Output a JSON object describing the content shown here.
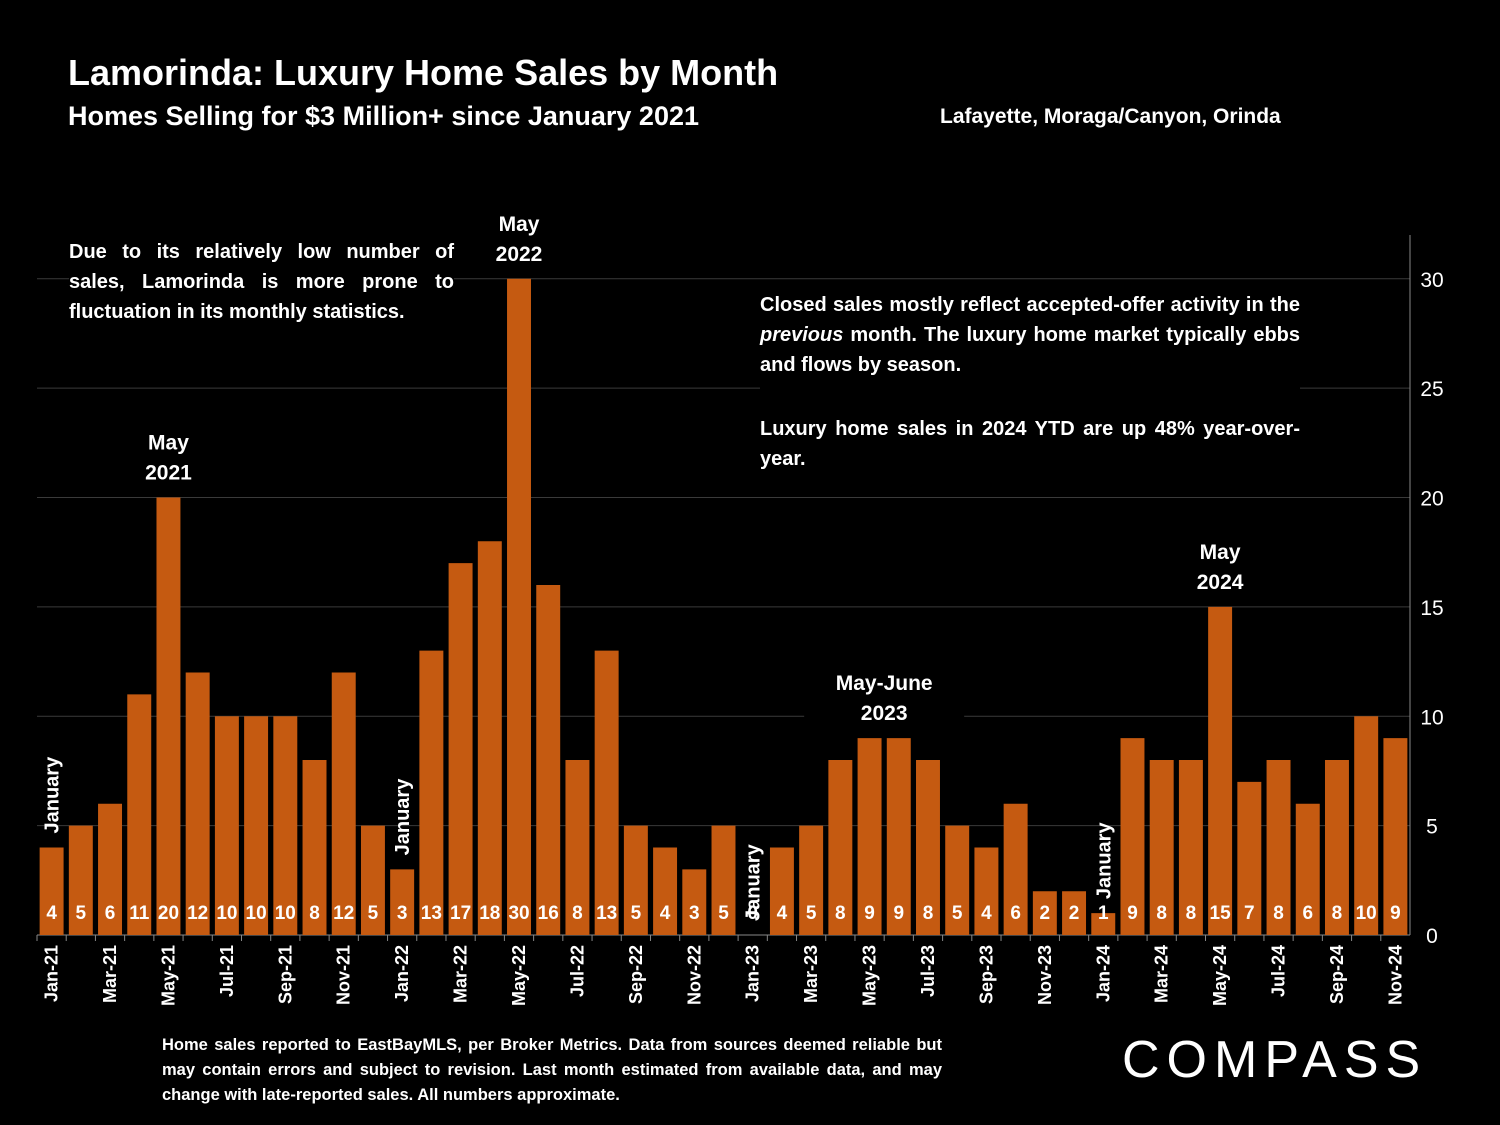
{
  "header": {
    "title": "Lamorinda:  Luxury Home Sales by Month",
    "subtitle": "Homes Selling for $3 Million+ since January 2021",
    "region": "Lafayette, Moraga/Canyon, Orinda"
  },
  "notes": {
    "left": "Due to its relatively low number of sales, Lamorinda is more prone to fluctuation in its monthly statistics.",
    "right_p1_a": "Closed sales mostly reflect accepted-offer activity in the ",
    "right_p1_em": "previous",
    "right_p1_b": " month. The luxury home market typically ebbs and flows by season.",
    "right_p2": "Luxury home sales in 2024 YTD are up 48% year-over-year."
  },
  "footnote": "Home sales reported to EastBayMLS, per Broker Metrics. Data from sources deemed reliable but may contain errors and subject to revision.  Last month estimated from available data, and may change with late-reported sales. All numbers approximate.",
  "brand": "COMPASS",
  "colors": {
    "bar": "#c55a11",
    "background": "#000000",
    "text": "#ffffff",
    "grid": "#3a3a3a"
  },
  "chart_data": {
    "type": "bar",
    "categories": [
      "Jan-21",
      "Feb-21",
      "Mar-21",
      "Apr-21",
      "May-21",
      "Jun-21",
      "Jul-21",
      "Aug-21",
      "Sep-21",
      "Oct-21",
      "Nov-21",
      "Dec-21",
      "Jan-22",
      "Feb-22",
      "Mar-22",
      "Apr-22",
      "May-22",
      "Jun-22",
      "Jul-22",
      "Aug-22",
      "Sep-22",
      "Oct-22",
      "Nov-22",
      "Dec-22",
      "Jan-23",
      "Feb-23",
      "Mar-23",
      "Apr-23",
      "May-23",
      "Jun-23",
      "Jul-23",
      "Aug-23",
      "Sep-23",
      "Oct-23",
      "Nov-23",
      "Dec-23",
      "Jan-24",
      "Feb-24",
      "Mar-24",
      "Apr-24",
      "May-24",
      "Jun-24",
      "Jul-24",
      "Aug-24",
      "Sep-24",
      "Oct-24",
      "Nov-24"
    ],
    "tick_labels": [
      "Jan-21",
      "",
      "Mar-21",
      "",
      "May-21",
      "",
      "Jul-21",
      "",
      "Sep-21",
      "",
      "Nov-21",
      "",
      "Jan-22",
      "",
      "Mar-22",
      "",
      "May-22",
      "",
      "Jul-22",
      "",
      "Sep-22",
      "",
      "Nov-22",
      "",
      "Jan-23",
      "",
      "Mar-23",
      "",
      "May-23",
      "",
      "Jul-23",
      "",
      "Sep-23",
      "",
      "Nov-23",
      "",
      "Jan-24",
      "",
      "Mar-24",
      "",
      "May-24",
      "",
      "Jul-24",
      "",
      "Sep-24",
      "",
      "Nov-24"
    ],
    "values": [
      4,
      5,
      6,
      11,
      20,
      12,
      10,
      10,
      10,
      8,
      12,
      5,
      3,
      13,
      17,
      18,
      30,
      16,
      8,
      13,
      5,
      4,
      3,
      5,
      0,
      4,
      5,
      8,
      9,
      9,
      8,
      5,
      4,
      6,
      2,
      2,
      1,
      9,
      8,
      8,
      15,
      7,
      8,
      6,
      8,
      10,
      9
    ],
    "ylim": [
      0,
      32
    ],
    "yticks": [
      0,
      5,
      10,
      15,
      20,
      25,
      30
    ],
    "y_axis_position": "right",
    "grid": true,
    "annotations": [
      {
        "index": 0,
        "text": "January",
        "rotated": true
      },
      {
        "index": 12,
        "text": "January",
        "rotated": true
      },
      {
        "index": 24,
        "text": "January",
        "rotated": true
      },
      {
        "index": 36,
        "text": "January",
        "rotated": true
      },
      {
        "index": 4,
        "lines": [
          "May",
          "2021"
        ]
      },
      {
        "index": 16,
        "lines": [
          "May",
          "2022"
        ]
      },
      {
        "index": 28.5,
        "lines": [
          "May-June",
          "2023"
        ]
      },
      {
        "index": 40,
        "lines": [
          "May",
          "2024"
        ]
      }
    ]
  }
}
